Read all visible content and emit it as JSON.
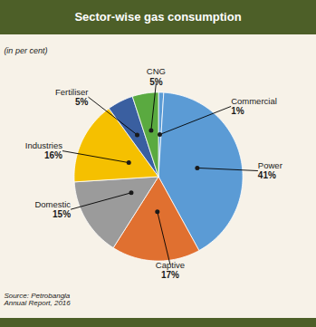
{
  "chart_data": {
    "type": "pie",
    "title": "Sector-wise gas consumption",
    "subtitle": "(in per cent)",
    "annotations": [
      "Source: Petrobangla\nAnnual Report, 2016"
    ],
    "categories": [
      "Commercial",
      "Power",
      "Captive",
      "Domestic",
      "Industries",
      "Fertiliser",
      "CNG"
    ],
    "values": [
      1,
      41,
      17,
      15,
      16,
      5,
      5
    ],
    "value_labels": [
      "1%",
      "41%",
      "17%",
      "15%",
      "16%",
      "5%",
      "5%"
    ],
    "colors": [
      "#5b9bd5",
      "#5b9bd5",
      "#e07030",
      "#9b9b9b",
      "#f5c000",
      "#3a5fa0",
      "#5aaa40"
    ],
    "data_labels": true
  }
}
